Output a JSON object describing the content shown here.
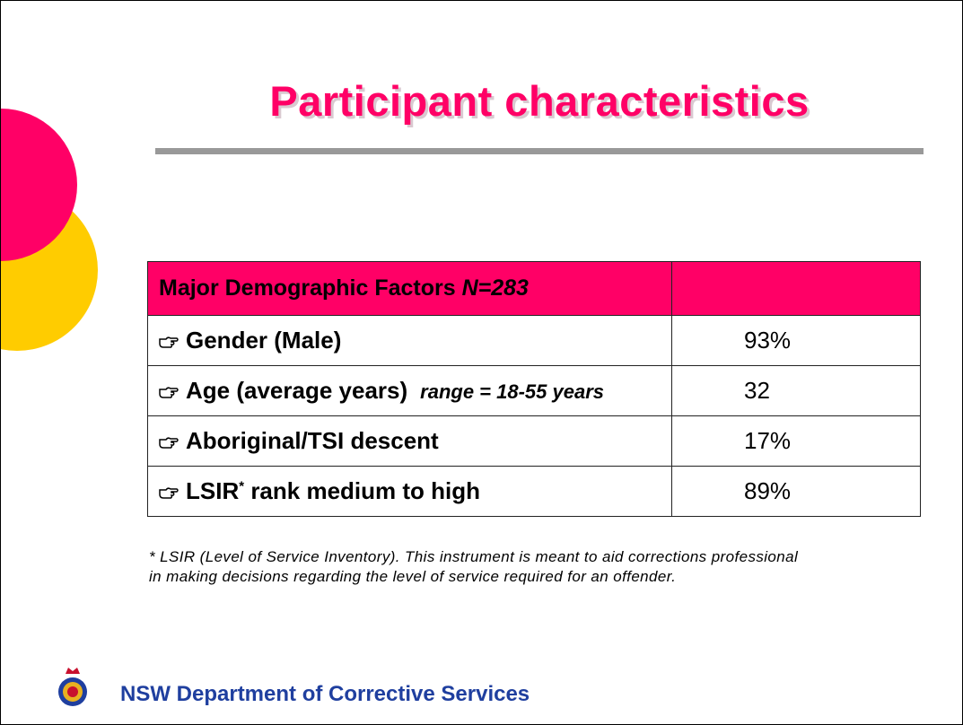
{
  "title": "Participant characteristics",
  "table": {
    "header": {
      "label": "Major Demographic Factors",
      "n": "N=283"
    },
    "rows": [
      {
        "label": "Gender (Male)",
        "value": "93%"
      },
      {
        "label": "Age (average years)",
        "note": "range = 18-55 years",
        "value": "32"
      },
      {
        "label": "Aboriginal/TSI descent",
        "value": "17%"
      },
      {
        "label": "LSIR",
        "sup": "*",
        "rest": "rank medium to high",
        "value": "89%"
      }
    ]
  },
  "footnote": [
    "* LSIR (Level of Service Inventory). This instrument is meant to aid corrections professional",
    "in making decisions regarding the level of service required for an offender."
  ],
  "footer": "NSW Department of Corrective Services"
}
